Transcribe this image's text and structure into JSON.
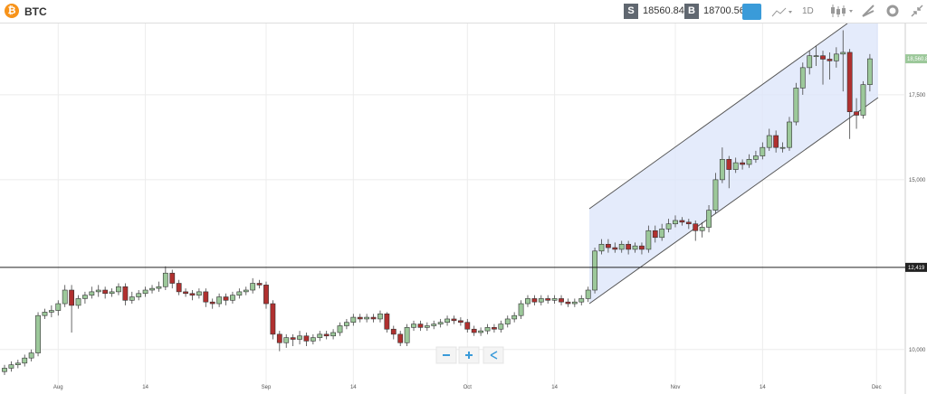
{
  "toolbar": {
    "symbol": "BTC",
    "sell_label": "S",
    "sell_price": "18560.84",
    "buy_label": "B",
    "buy_price": "18700.56",
    "interval": "1D"
  },
  "chart": {
    "type": "candlestick",
    "ylim": [
      8850,
      19600
    ],
    "yticks": [
      {
        "value": 10000,
        "label": "10,000"
      },
      {
        "value": 15000,
        "label": "15,000"
      },
      {
        "value": 17500,
        "label": "17,500"
      }
    ],
    "xticks": [
      "Aug",
      "14",
      "Sep",
      "14",
      "Oct",
      "14",
      "Nov",
      "14",
      "Dec"
    ],
    "grid": true,
    "up_color": "#9cc89a",
    "down_color": "#b0302f",
    "price_line": {
      "value": 12419,
      "label": "12,419"
    },
    "current_price": {
      "value": 18560.84,
      "label": "18,560.8"
    },
    "candles": [
      [
        9350,
        9550,
        9250,
        9450
      ],
      [
        9450,
        9650,
        9350,
        9550
      ],
      [
        9550,
        9700,
        9450,
        9600
      ],
      [
        9600,
        9850,
        9500,
        9750
      ],
      [
        9750,
        10000,
        9650,
        9900
      ],
      [
        9900,
        11100,
        9800,
        11000
      ],
      [
        11000,
        11200,
        10900,
        11100
      ],
      [
        11100,
        11300,
        10950,
        11150
      ],
      [
        11150,
        11450,
        11000,
        11350
      ],
      [
        11350,
        11900,
        11250,
        11750
      ],
      [
        11750,
        11900,
        10500,
        11300
      ],
      [
        11300,
        11600,
        11200,
        11500
      ],
      [
        11500,
        11700,
        11350,
        11600
      ],
      [
        11600,
        11850,
        11500,
        11700
      ],
      [
        11700,
        11900,
        11550,
        11750
      ],
      [
        11750,
        11850,
        11500,
        11650
      ],
      [
        11650,
        11800,
        11550,
        11700
      ],
      [
        11700,
        11950,
        11600,
        11850
      ],
      [
        11850,
        11950,
        11300,
        11450
      ],
      [
        11450,
        11700,
        11350,
        11550
      ],
      [
        11550,
        11750,
        11450,
        11650
      ],
      [
        11650,
        11850,
        11550,
        11750
      ],
      [
        11750,
        11900,
        11650,
        11800
      ],
      [
        11800,
        12000,
        11700,
        11850
      ],
      [
        11850,
        12450,
        11750,
        12250
      ],
      [
        12250,
        12350,
        11800,
        11950
      ],
      [
        11950,
        12050,
        11600,
        11700
      ],
      [
        11700,
        11800,
        11550,
        11650
      ],
      [
        11650,
        11750,
        11450,
        11600
      ],
      [
        11600,
        11800,
        11500,
        11700
      ],
      [
        11700,
        11800,
        11250,
        11400
      ],
      [
        11400,
        11500,
        11200,
        11350
      ],
      [
        11350,
        11650,
        11250,
        11550
      ],
      [
        11550,
        11650,
        11300,
        11450
      ],
      [
        11450,
        11700,
        11350,
        11600
      ],
      [
        11600,
        11800,
        11500,
        11700
      ],
      [
        11700,
        11850,
        11600,
        11750
      ],
      [
        11750,
        12100,
        11650,
        11950
      ],
      [
        11950,
        12050,
        11800,
        11900
      ],
      [
        11900,
        12000,
        11200,
        11350
      ],
      [
        11350,
        11450,
        10300,
        10450
      ],
      [
        10450,
        10550,
        9950,
        10200
      ],
      [
        10200,
        10450,
        10050,
        10350
      ],
      [
        10350,
        10450,
        10100,
        10300
      ],
      [
        10300,
        10550,
        10150,
        10400
      ],
      [
        10400,
        10500,
        10100,
        10250
      ],
      [
        10250,
        10450,
        10150,
        10350
      ],
      [
        10350,
        10550,
        10250,
        10450
      ],
      [
        10450,
        10550,
        10300,
        10400
      ],
      [
        10400,
        10600,
        10300,
        10500
      ],
      [
        10500,
        10800,
        10400,
        10700
      ],
      [
        10700,
        10900,
        10600,
        10800
      ],
      [
        10800,
        11050,
        10700,
        10950
      ],
      [
        10950,
        11050,
        10800,
        10900
      ],
      [
        10900,
        11050,
        10800,
        10950
      ],
      [
        10950,
        11050,
        10800,
        10900
      ],
      [
        10900,
        11150,
        10800,
        11050
      ],
      [
        11050,
        11100,
        10500,
        10600
      ],
      [
        10600,
        10700,
        10300,
        10450
      ],
      [
        10450,
        10550,
        10100,
        10200
      ],
      [
        10200,
        10750,
        10100,
        10650
      ],
      [
        10650,
        10850,
        10550,
        10750
      ],
      [
        10750,
        10850,
        10550,
        10650
      ],
      [
        10650,
        10800,
        10550,
        10700
      ],
      [
        10700,
        10850,
        10600,
        10750
      ],
      [
        10750,
        10900,
        10650,
        10800
      ],
      [
        10800,
        11000,
        10700,
        10900
      ],
      [
        10900,
        11000,
        10750,
        10850
      ],
      [
        10850,
        10950,
        10700,
        10800
      ],
      [
        10800,
        10900,
        10500,
        10600
      ],
      [
        10600,
        10700,
        10400,
        10500
      ],
      [
        10500,
        10650,
        10400,
        10550
      ],
      [
        10550,
        10750,
        10450,
        10650
      ],
      [
        10650,
        10750,
        10500,
        10600
      ],
      [
        10600,
        10850,
        10500,
        10750
      ],
      [
        10750,
        11000,
        10650,
        10900
      ],
      [
        10900,
        11100,
        10800,
        11000
      ],
      [
        11000,
        11450,
        10900,
        11350
      ],
      [
        11350,
        11600,
        11250,
        11500
      ],
      [
        11500,
        11600,
        11300,
        11400
      ],
      [
        11400,
        11600,
        11300,
        11500
      ],
      [
        11500,
        11600,
        11350,
        11450
      ],
      [
        11450,
        11600,
        11350,
        11500
      ],
      [
        11500,
        11600,
        11300,
        11400
      ],
      [
        11400,
        11500,
        11250,
        11350
      ],
      [
        11350,
        11500,
        11250,
        11400
      ],
      [
        11400,
        11600,
        11300,
        11500
      ],
      [
        11500,
        11850,
        11400,
        11750
      ],
      [
        11750,
        13000,
        11650,
        12900
      ],
      [
        12900,
        13250,
        12800,
        13100
      ],
      [
        13100,
        13250,
        12850,
        13000
      ],
      [
        13000,
        13150,
        12850,
        12950
      ],
      [
        12950,
        13200,
        12850,
        13100
      ],
      [
        13100,
        13200,
        12800,
        12950
      ],
      [
        12950,
        13150,
        12850,
        13050
      ],
      [
        13050,
        13150,
        12800,
        12950
      ],
      [
        12950,
        13650,
        12850,
        13500
      ],
      [
        13500,
        13650,
        13150,
        13300
      ],
      [
        13300,
        13700,
        13200,
        13550
      ],
      [
        13550,
        13850,
        13450,
        13700
      ],
      [
        13700,
        13950,
        13600,
        13800
      ],
      [
        13800,
        13900,
        13650,
        13750
      ],
      [
        13750,
        13850,
        13550,
        13700
      ],
      [
        13700,
        13800,
        13200,
        13500
      ],
      [
        13500,
        13750,
        13300,
        13600
      ],
      [
        13600,
        14250,
        13450,
        14100
      ],
      [
        14100,
        15200,
        14000,
        15000
      ],
      [
        15000,
        15950,
        14900,
        15600
      ],
      [
        15600,
        15700,
        14750,
        15300
      ],
      [
        15300,
        15650,
        15200,
        15500
      ],
      [
        15500,
        15600,
        15300,
        15450
      ],
      [
        15450,
        15750,
        15350,
        15600
      ],
      [
        15600,
        15850,
        15500,
        15700
      ],
      [
        15700,
        16100,
        15600,
        15950
      ],
      [
        15950,
        16500,
        15850,
        16300
      ],
      [
        16300,
        16450,
        15800,
        15950
      ],
      [
        15950,
        16100,
        15800,
        15950
      ],
      [
        15950,
        16850,
        15850,
        16700
      ],
      [
        16700,
        17850,
        16600,
        17700
      ],
      [
        17700,
        18450,
        17500,
        18300
      ],
      [
        18300,
        18800,
        18100,
        18650
      ],
      [
        18650,
        18950,
        18350,
        18650
      ],
      [
        18650,
        18800,
        17800,
        18550
      ],
      [
        18550,
        18750,
        17950,
        18500
      ],
      [
        18500,
        18900,
        18300,
        18700
      ],
      [
        18700,
        19400,
        17600,
        18750
      ],
      [
        18750,
        18850,
        16200,
        17000
      ],
      [
        17000,
        17400,
        16500,
        16900
      ],
      [
        16900,
        17900,
        16800,
        17800
      ],
      [
        17800,
        18700,
        17600,
        18560
      ]
    ]
  }
}
